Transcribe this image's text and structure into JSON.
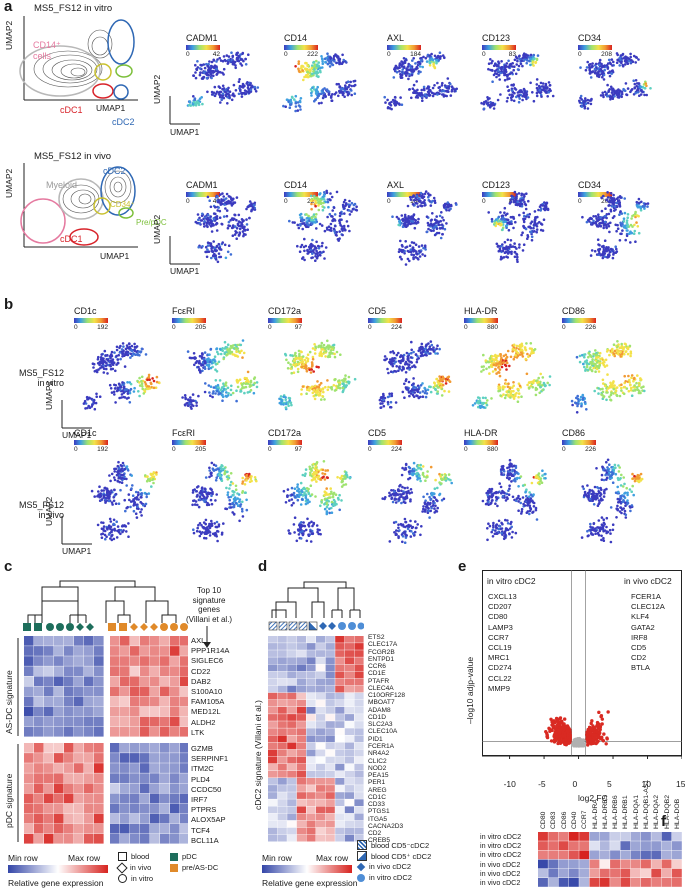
{
  "panels": {
    "a": "a",
    "b": "b",
    "c": "c",
    "d": "d",
    "e": "e",
    "f": "f"
  },
  "colors": {
    "cdc1": "#d8232a",
    "cdc2": "#2f68b4",
    "cd14": "#e57aa0",
    "pre_pdc": "#7cbf3a",
    "cd34": "#c9c12e",
    "myeloid": "#b8b8b8",
    "pdc": "#1e6e5c",
    "asdc": "#e08a2a",
    "scatter_red": "#d92a22"
  },
  "panel_a": {
    "vitro_title": "MS5_FS12 in vitro",
    "vivo_title": "MS5_FS12 in vivo",
    "umap1": "UMAP1",
    "umap2": "UMAP2",
    "cd14_label": "CD14⁺\ncells",
    "cdc1": "cDC1",
    "cdc2": "cDC2",
    "myeloid": "Myeloid",
    "pre_pdc": "Pre/pDC",
    "cd34": "CD34⁺",
    "markers": [
      {
        "name": "CADM1",
        "min": "0",
        "max": "42"
      },
      {
        "name": "CD14",
        "min": "0",
        "max": "222"
      },
      {
        "name": "AXL",
        "min": "0",
        "max": "184"
      },
      {
        "name": "CD123",
        "min": "0",
        "max": "83"
      },
      {
        "name": "CD34",
        "min": "0",
        "max": "208"
      }
    ]
  },
  "panel_b": {
    "vitro_label": "MS5_FS12\nin vitro",
    "vivo_label": "MS5_FS12\nin vivo",
    "markers": [
      {
        "name": "CD1c",
        "min": "0",
        "max": "192"
      },
      {
        "name": "FcεRI",
        "min": "0",
        "max": "205"
      },
      {
        "name": "CD172a",
        "min": "0",
        "max": "97"
      },
      {
        "name": "CD5",
        "min": "0",
        "max": "224"
      },
      {
        "name": "HLA-DR",
        "min": "0",
        "max": "880"
      },
      {
        "name": "CD86",
        "min": "0",
        "max": "226"
      }
    ]
  },
  "panel_c": {
    "top_note": "Top 10\nsignature\ngenes\n(Villani et al.)",
    "asdc_sig": "AS-DC signature",
    "pdc_sig": "pDC signature",
    "asdc_genes": [
      "AXL",
      "PPP1R14A",
      "SIGLEC6",
      "CD22",
      "DAB2",
      "S100A10",
      "FAM105A",
      "MED12L",
      "ALDH2",
      "LTK"
    ],
    "pdc_genes": [
      "GZMB",
      "SERPINF1",
      "ITM2C",
      "PLD4",
      "CCDC50",
      "IRF7",
      "PTPRS",
      "ALOX5AP",
      "TCF4",
      "BCL11A"
    ],
    "min_row": "Min row",
    "max_row": "Max row",
    "rel_expr": "Relative gene expression",
    "legend_blood": "blood",
    "legend_vivo": "in vivo",
    "legend_vitro": "in vitro",
    "legend_pdc": "pDC",
    "legend_asdc": "pre/AS-DC"
  },
  "panel_d": {
    "sig_label": "cDC2 signature (Villani et al.)",
    "genes": [
      "ETS2",
      "CLEC17A",
      "FCGR2B",
      "ENTPD1",
      "CCR6",
      "CD1E",
      "PTAFR",
      "CLEC4A",
      "C10ORF128",
      "MBOAT7",
      "ADAM8",
      "CD1D",
      "SLC2A3",
      "CLEC10A",
      "PID1",
      "FCER1A",
      "NR4A2",
      "CLIC2",
      "NOD2",
      "PEA15",
      "PER1",
      "AREG",
      "CD1C",
      "CD33",
      "PTGS1",
      "ITGA5",
      "CACNA2D3",
      "CD2",
      "CREB5"
    ],
    "min_row": "Min row",
    "max_row": "Max row",
    "rel_expr": "Relative gene expression",
    "legend": [
      "blood CD5⁻cDC2",
      "blood CD5⁺ cDC2",
      "in vivo cDC2",
      "in vitro cDC2"
    ]
  },
  "panel_e": {
    "left_title": "in vitro cDC2",
    "right_title": "in vivo cDC2",
    "left_genes": [
      "CXCL13",
      "CD207",
      "CD80",
      "LAMP3",
      "CCR7",
      "CCL19",
      "MRC1",
      "CD274",
      "CCL22",
      "MMP9"
    ],
    "right_genes": [
      "FCER1A",
      "CLEC12A",
      "KLF4",
      "GATA2",
      "IRF8",
      "CD5",
      "CD2",
      "BTLA"
    ],
    "xlabel": "log2 FC",
    "ylabel": "–log10 adjp-value",
    "xticks": [
      "-10",
      "-5",
      "0",
      "5",
      "10",
      "15"
    ]
  },
  "panel_f": {
    "columns": [
      "CD80",
      "CD83",
      "CD86",
      "CD40",
      "CCR7",
      "HLA-DRA",
      "HLA-DRB5",
      "HLA-DRB6",
      "HLA-DRB1",
      "HLA-DQA1",
      "HLA-DQB1-AS1",
      "HLA-DQA2",
      "HLA-DQB2",
      "HLA-DOB"
    ],
    "rows": [
      "in vitro cDC2",
      "in vitro cDC2",
      "in vitro cDC2",
      "in vivo cDC2",
      "in vivo cDC2",
      "in vivo cDC2"
    ]
  }
}
